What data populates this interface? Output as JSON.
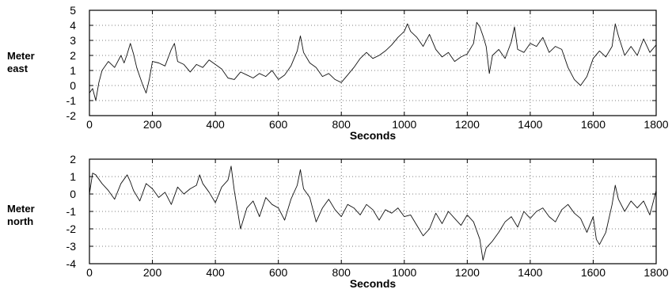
{
  "chart_data": [
    {
      "type": "line",
      "title": "",
      "xlabel": "Seconds",
      "ylabel": "Meter\neast",
      "xlim": [
        0,
        1800
      ],
      "ylim": [
        -2,
        5
      ],
      "xticks": [
        0,
        200,
        400,
        600,
        800,
        1000,
        1200,
        1400,
        1600,
        1800
      ],
      "yticks": [
        -2,
        -1,
        0,
        1,
        2,
        3,
        4,
        5
      ],
      "grid": "dotted",
      "series": [
        {
          "x": [
            0,
            10,
            20,
            30,
            40,
            60,
            80,
            100,
            110,
            120,
            130,
            140,
            150,
            160,
            170,
            180,
            190,
            200,
            220,
            240,
            260,
            270,
            280,
            300,
            320,
            340,
            360,
            380,
            400,
            420,
            440,
            460,
            480,
            500,
            520,
            540,
            560,
            580,
            600,
            620,
            640,
            660,
            670,
            680,
            700,
            720,
            740,
            760,
            780,
            800,
            820,
            840,
            860,
            880,
            900,
            920,
            940,
            960,
            980,
            1000,
            1010,
            1020,
            1040,
            1060,
            1080,
            1100,
            1120,
            1140,
            1160,
            1180,
            1200,
            1220,
            1230,
            1240,
            1250,
            1260,
            1270,
            1280,
            1300,
            1320,
            1340,
            1350,
            1360,
            1380,
            1400,
            1420,
            1440,
            1460,
            1480,
            1500,
            1520,
            1540,
            1560,
            1580,
            1600,
            1620,
            1640,
            1660,
            1670,
            1680,
            1700,
            1720,
            1740,
            1760,
            1780,
            1800
          ],
          "y": [
            -0.5,
            -0.2,
            -1.0,
            0.2,
            1.0,
            1.6,
            1.2,
            2.0,
            1.5,
            2.1,
            2.8,
            2.1,
            1.2,
            0.6,
            0.0,
            -0.5,
            0.4,
            1.6,
            1.5,
            1.3,
            2.4,
            2.8,
            1.6,
            1.4,
            0.9,
            1.4,
            1.2,
            1.7,
            1.4,
            1.1,
            0.5,
            0.4,
            0.9,
            0.7,
            0.5,
            0.8,
            0.6,
            1.0,
            0.4,
            0.7,
            1.3,
            2.3,
            3.3,
            2.2,
            1.5,
            1.2,
            0.6,
            0.8,
            0.4,
            0.2,
            0.7,
            1.2,
            1.8,
            2.2,
            1.8,
            2.0,
            2.3,
            2.7,
            3.2,
            3.6,
            4.1,
            3.6,
            3.2,
            2.6,
            3.4,
            2.4,
            1.9,
            2.2,
            1.6,
            1.9,
            2.1,
            2.8,
            4.2,
            3.9,
            3.3,
            2.6,
            0.8,
            2.0,
            2.4,
            1.8,
            2.9,
            3.9,
            2.4,
            2.2,
            2.8,
            2.6,
            3.2,
            2.2,
            2.6,
            2.4,
            1.2,
            0.4,
            0.0,
            0.6,
            1.8,
            2.3,
            1.9,
            2.6,
            4.1,
            3.3,
            2.0,
            2.6,
            2.0,
            3.1,
            2.2,
            2.7
          ]
        }
      ]
    },
    {
      "type": "line",
      "title": "",
      "xlabel": "Seconds",
      "ylabel": "Meter\nnorth",
      "xlim": [
        0,
        1800
      ],
      "ylim": [
        -4,
        2
      ],
      "xticks": [
        0,
        200,
        400,
        600,
        800,
        1000,
        1200,
        1400,
        1600,
        1800
      ],
      "yticks": [
        -4,
        -3,
        -2,
        -1,
        0,
        1,
        2
      ],
      "grid": "dotted",
      "series": [
        {
          "x": [
            0,
            10,
            20,
            40,
            60,
            80,
            100,
            120,
            130,
            140,
            160,
            180,
            200,
            220,
            240,
            260,
            280,
            300,
            320,
            340,
            350,
            360,
            380,
            400,
            420,
            440,
            450,
            460,
            480,
            500,
            520,
            540,
            560,
            580,
            600,
            620,
            640,
            660,
            670,
            680,
            700,
            720,
            740,
            760,
            780,
            800,
            820,
            840,
            860,
            880,
            900,
            920,
            940,
            960,
            980,
            1000,
            1020,
            1040,
            1060,
            1080,
            1100,
            1120,
            1140,
            1160,
            1180,
            1200,
            1220,
            1240,
            1250,
            1260,
            1280,
            1300,
            1320,
            1340,
            1360,
            1380,
            1400,
            1420,
            1440,
            1460,
            1480,
            1500,
            1520,
            1540,
            1560,
            1580,
            1600,
            1610,
            1620,
            1640,
            1660,
            1670,
            1680,
            1700,
            1720,
            1740,
            1760,
            1780,
            1800
          ],
          "y": [
            0.0,
            1.2,
            1.1,
            0.6,
            0.2,
            -0.3,
            0.6,
            1.1,
            0.7,
            0.2,
            -0.4,
            0.6,
            0.3,
            -0.2,
            0.1,
            -0.6,
            0.4,
            0.0,
            0.3,
            0.5,
            1.1,
            0.6,
            0.1,
            -0.5,
            0.4,
            0.8,
            1.6,
            0.2,
            -2.0,
            -0.8,
            -0.4,
            -1.3,
            -0.2,
            -0.6,
            -0.8,
            -1.5,
            -0.3,
            0.5,
            1.4,
            0.3,
            -0.2,
            -1.6,
            -0.8,
            -0.3,
            -0.9,
            -1.3,
            -0.6,
            -0.8,
            -1.2,
            -0.6,
            -0.9,
            -1.5,
            -0.9,
            -1.1,
            -0.8,
            -1.3,
            -1.2,
            -1.8,
            -2.4,
            -2.0,
            -1.1,
            -1.7,
            -1.0,
            -1.4,
            -1.8,
            -1.2,
            -1.6,
            -2.6,
            -3.8,
            -3.1,
            -2.7,
            -2.2,
            -1.6,
            -1.3,
            -1.9,
            -1.0,
            -1.4,
            -1.0,
            -0.8,
            -1.3,
            -1.6,
            -0.9,
            -0.6,
            -1.1,
            -1.4,
            -2.2,
            -1.3,
            -2.6,
            -2.9,
            -2.2,
            -0.6,
            0.5,
            -0.3,
            -1.0,
            -0.4,
            -0.8,
            -0.4,
            -1.2,
            0.2
          ]
        }
      ]
    }
  ]
}
